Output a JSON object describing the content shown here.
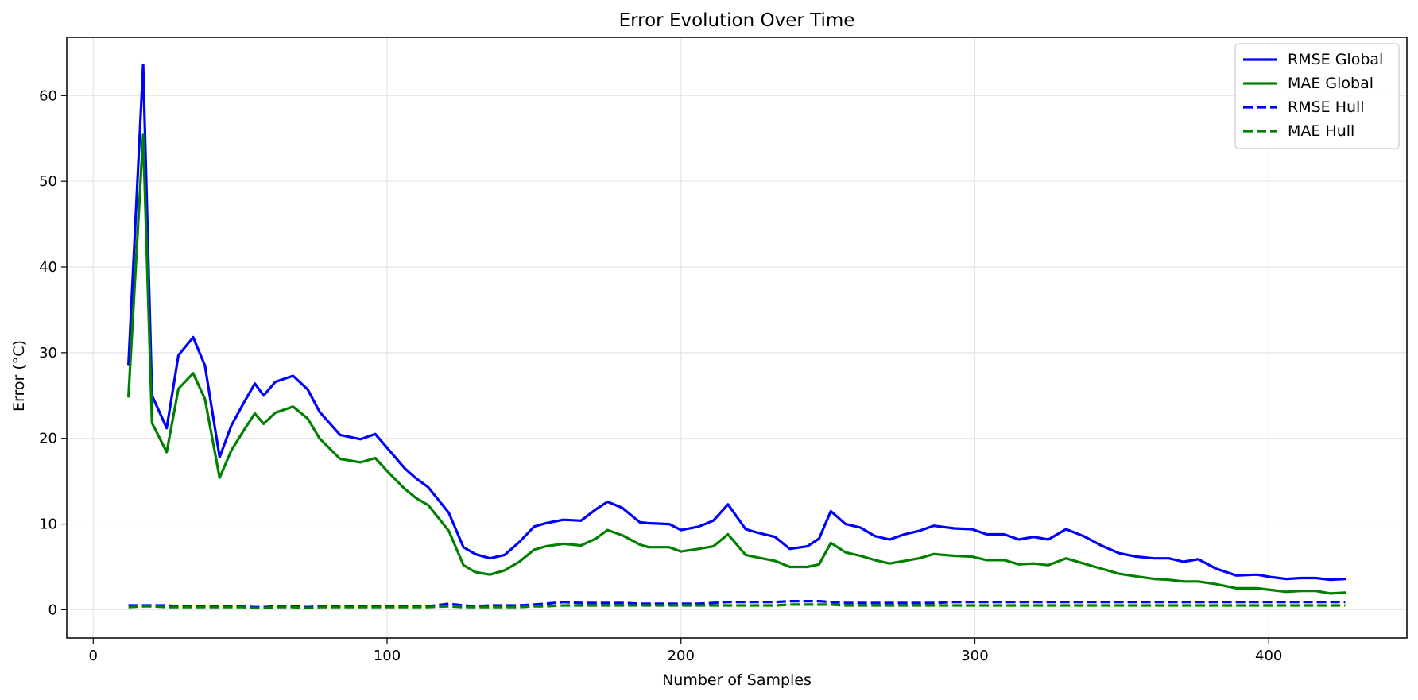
{
  "chart_data": {
    "type": "line",
    "title": "Error Evolution Over Time",
    "xlabel": "Number of Samples",
    "ylabel": "Error (°C)",
    "xlim": [
      -9,
      447
    ],
    "ylim": [
      -3.3,
      66.8
    ],
    "xticks": [
      0,
      100,
      200,
      300,
      400
    ],
    "yticks": [
      0,
      10,
      20,
      30,
      40,
      50,
      60
    ],
    "grid": true,
    "legend_position": "top-right",
    "x": [
      12,
      17,
      20,
      25,
      29,
      34,
      38,
      43,
      47,
      51,
      55,
      58,
      62,
      68,
      73,
      77,
      84,
      91,
      96,
      100,
      106,
      110,
      114,
      121,
      126,
      130,
      135,
      140,
      145,
      150,
      154,
      160,
      166,
      171,
      175,
      180,
      186,
      189,
      196,
      200,
      206,
      211,
      216,
      222,
      226,
      232,
      237,
      243,
      247,
      251,
      256,
      261,
      266,
      271,
      276,
      281,
      286,
      293,
      299,
      304,
      310,
      315,
      320,
      325,
      331,
      337,
      343,
      349,
      355,
      361,
      366,
      371,
      376,
      382,
      389,
      396,
      401,
      406,
      411,
      416,
      421,
      426
    ],
    "series": [
      {
        "name": "RMSE Global",
        "color": "#0000ff",
        "style": "solid",
        "values": [
          28.6,
          63.6,
          25.0,
          21.2,
          29.7,
          31.8,
          28.5,
          17.8,
          21.5,
          24.0,
          26.4,
          25.0,
          26.6,
          27.3,
          25.7,
          23.1,
          20.4,
          19.9,
          20.5,
          18.9,
          16.5,
          15.3,
          14.3,
          11.3,
          7.3,
          6.5,
          6.0,
          6.4,
          7.9,
          9.7,
          10.1,
          10.5,
          10.4,
          11.7,
          12.6,
          11.9,
          10.2,
          10.1,
          10.0,
          9.3,
          9.7,
          10.4,
          12.3,
          9.4,
          9.0,
          8.5,
          7.1,
          7.4,
          8.3,
          11.5,
          10.0,
          9.6,
          8.6,
          8.2,
          8.8,
          9.2,
          9.8,
          9.5,
          9.4,
          8.8,
          8.8,
          8.2,
          8.5,
          8.2,
          9.4,
          8.6,
          7.5,
          6.6,
          6.2,
          6.0,
          6.0,
          5.6,
          5.9,
          4.8,
          4.0,
          4.1,
          3.8,
          3.6,
          3.7,
          3.7,
          3.5,
          3.6
        ]
      },
      {
        "name": "MAE Global",
        "color": "#008000",
        "style": "solid",
        "values": [
          24.9,
          55.4,
          21.8,
          18.4,
          25.8,
          27.6,
          24.6,
          15.4,
          18.6,
          20.8,
          22.9,
          21.7,
          23.0,
          23.7,
          22.3,
          20.0,
          17.6,
          17.2,
          17.7,
          16.2,
          14.1,
          13.0,
          12.2,
          9.2,
          5.2,
          4.4,
          4.1,
          4.6,
          5.6,
          7.0,
          7.4,
          7.7,
          7.5,
          8.3,
          9.3,
          8.7,
          7.6,
          7.3,
          7.3,
          6.8,
          7.1,
          7.4,
          8.8,
          6.4,
          6.1,
          5.7,
          5.0,
          5.0,
          5.3,
          7.8,
          6.7,
          6.3,
          5.8,
          5.4,
          5.7,
          6.0,
          6.5,
          6.3,
          6.2,
          5.8,
          5.8,
          5.3,
          5.4,
          5.2,
          6.0,
          5.4,
          4.8,
          4.2,
          3.9,
          3.6,
          3.5,
          3.3,
          3.3,
          3.0,
          2.5,
          2.5,
          2.3,
          2.1,
          2.2,
          2.2,
          1.9,
          2.0
        ]
      },
      {
        "name": "RMSE Hull",
        "color": "#0000ff",
        "style": "dashed",
        "values": [
          0.5,
          0.5,
          0.5,
          0.5,
          0.4,
          0.4,
          0.4,
          0.4,
          0.4,
          0.4,
          0.3,
          0.3,
          0.4,
          0.4,
          0.3,
          0.4,
          0.4,
          0.4,
          0.4,
          0.4,
          0.4,
          0.4,
          0.4,
          0.7,
          0.5,
          0.4,
          0.5,
          0.5,
          0.5,
          0.6,
          0.7,
          0.9,
          0.8,
          0.8,
          0.8,
          0.8,
          0.7,
          0.7,
          0.7,
          0.7,
          0.7,
          0.8,
          0.9,
          0.9,
          0.9,
          0.9,
          1.0,
          1.0,
          1.0,
          0.9,
          0.8,
          0.8,
          0.8,
          0.8,
          0.8,
          0.8,
          0.8,
          0.9,
          0.9,
          0.9,
          0.9,
          0.9,
          0.9,
          0.9,
          0.9,
          0.9,
          0.9,
          0.9,
          0.9,
          0.9,
          0.9,
          0.9,
          0.9,
          0.9,
          0.9,
          0.9,
          0.9,
          0.9,
          0.9,
          0.9,
          0.9,
          0.9
        ]
      },
      {
        "name": "MAE Hull",
        "color": "#008000",
        "style": "dashed",
        "values": [
          0.3,
          0.4,
          0.4,
          0.3,
          0.3,
          0.3,
          0.3,
          0.3,
          0.3,
          0.3,
          0.2,
          0.2,
          0.3,
          0.3,
          0.2,
          0.3,
          0.3,
          0.3,
          0.3,
          0.3,
          0.3,
          0.3,
          0.3,
          0.4,
          0.3,
          0.3,
          0.3,
          0.3,
          0.3,
          0.4,
          0.4,
          0.5,
          0.5,
          0.5,
          0.5,
          0.5,
          0.5,
          0.5,
          0.5,
          0.5,
          0.5,
          0.5,
          0.5,
          0.5,
          0.5,
          0.5,
          0.6,
          0.6,
          0.6,
          0.6,
          0.5,
          0.5,
          0.5,
          0.5,
          0.5,
          0.5,
          0.5,
          0.5,
          0.5,
          0.5,
          0.5,
          0.5,
          0.5,
          0.5,
          0.5,
          0.5,
          0.5,
          0.5,
          0.5,
          0.5,
          0.5,
          0.5,
          0.5,
          0.5,
          0.5,
          0.5,
          0.5,
          0.5,
          0.5,
          0.5,
          0.5,
          0.5
        ]
      }
    ]
  }
}
